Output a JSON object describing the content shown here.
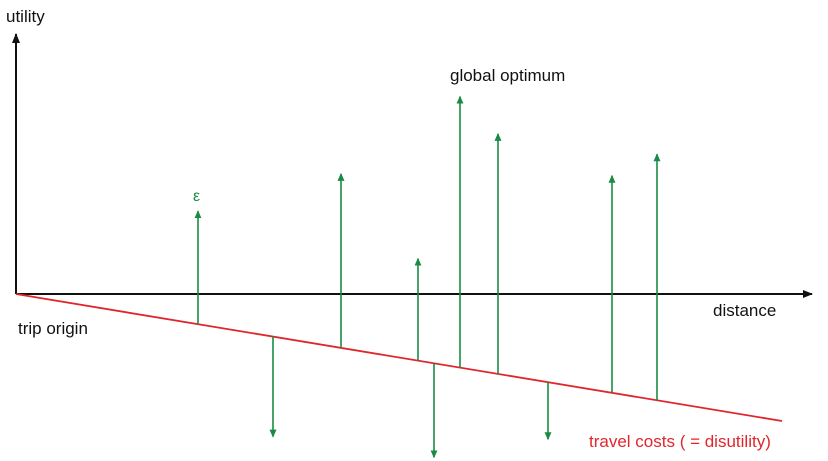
{
  "labels": {
    "y_axis": "utility",
    "x_axis": "distance",
    "origin": "trip origin",
    "peak": "global optimum",
    "epsilon": "ε",
    "cost_line": "travel costs ( = disutility)"
  },
  "colors": {
    "axis": "#111111",
    "cost": "#e0262c",
    "arrow": "#1a8a44"
  },
  "arrows": [
    {
      "id": "a1",
      "from_cost": true,
      "direction": "up",
      "length": 113
    },
    {
      "id": "a2",
      "from_cost": true,
      "direction": "down",
      "length": 100
    },
    {
      "id": "a3",
      "from_cost": true,
      "direction": "up",
      "length": 174
    },
    {
      "id": "a4",
      "from_cost": true,
      "direction": "up",
      "length": 102
    },
    {
      "id": "a5",
      "from_cost": true,
      "direction": "down",
      "length": 94
    },
    {
      "id": "a6",
      "from_cost": true,
      "direction": "up",
      "length": 271
    },
    {
      "id": "a7",
      "from_cost": true,
      "direction": "up",
      "length": 240
    },
    {
      "id": "a8",
      "from_cost": true,
      "direction": "down",
      "length": 57
    },
    {
      "id": "a9",
      "from_cost": true,
      "direction": "up",
      "length": 217
    },
    {
      "id": "a10",
      "from_cost": true,
      "direction": "up",
      "length": 246
    }
  ]
}
